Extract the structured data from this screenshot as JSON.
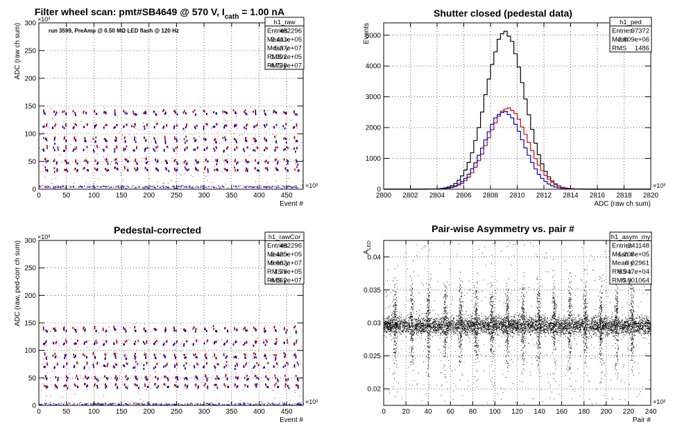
{
  "chart_data": [
    {
      "type": "scatter",
      "title": "Filter wheel scan: pmt#SB4649 @   570 V, I",
      "title_sub": "cath",
      "title_tail": "   = 1.00 nA",
      "annotation": "run 3599, PreAmp @ 0.50 MΩ   LED flash @  120 Hz",
      "xlabel": "Event #",
      "ylabel": "ADC (raw ch sum)",
      "x_multiplier": "×10³",
      "y_multiplier": "×10³",
      "xlim": [
        0,
        480
      ],
      "ylim": [
        0,
        300
      ],
      "xticks": [
        0,
        50,
        100,
        150,
        200,
        250,
        300,
        350,
        400,
        450
      ],
      "yticks": [
        0,
        50,
        100,
        150,
        200,
        250,
        300
      ],
      "grid": true,
      "bands": [
        {
          "y": 140,
          "color": "#cc0000"
        },
        {
          "y": 136,
          "color": "#0000cc"
        },
        {
          "y": 116,
          "color": "#cc0000"
        },
        {
          "y": 112,
          "color": "#0000cc"
        },
        {
          "y": 92,
          "color": "#cc0000"
        },
        {
          "y": 87,
          "color": "#0000cc"
        },
        {
          "y": 75,
          "color": "#cc0000"
        },
        {
          "y": 70,
          "color": "#0000cc"
        },
        {
          "y": 52,
          "color": "#cc0000"
        },
        {
          "y": 48,
          "color": "#0000cc"
        },
        {
          "y": 37,
          "color": "#cc0000"
        },
        {
          "y": 34,
          "color": "#0000cc"
        },
        {
          "y": 4,
          "color": "#0000cc"
        }
      ],
      "stats": {
        "name": "h1_raw",
        "rows": [
          {
            "label": "Entries",
            "value": "482296"
          },
          {
            "label": "Mean x",
            "value": "2.411e+05"
          },
          {
            "label": "Mean y",
            "value": "5.37e+07"
          },
          {
            "label": "RMS x",
            "value": "1.392e+05"
          },
          {
            "label": "RMS y",
            "value": "4.738e+07"
          }
        ]
      }
    },
    {
      "type": "line",
      "title": "Shutter closed (pedestal data)",
      "xlabel": "ADC (raw ch sum)",
      "ylabel": "Events",
      "x_multiplier": "×10³",
      "xlim": [
        2800,
        2820
      ],
      "ylim": [
        0,
        5400
      ],
      "xticks": [
        2800,
        2802,
        2804,
        2806,
        2808,
        2810,
        2812,
        2814,
        2816,
        2818,
        2820
      ],
      "yticks": [
        0,
        1000,
        2000,
        3000,
        4000,
        5000
      ],
      "grid": true,
      "series": [
        {
          "color": "#000000",
          "mean": 2809.1,
          "sigma": 1.45,
          "peak": 5100
        },
        {
          "color": "#cc0000",
          "mean": 2809.3,
          "sigma": 1.5,
          "peak": 2620
        },
        {
          "color": "#0000cc",
          "mean": 2809.0,
          "sigma": 1.45,
          "peak": 2520
        }
      ],
      "stats": {
        "name": "h1_ped",
        "rows": [
          {
            "label": "Entries",
            "value": "97372"
          },
          {
            "label": "Mean",
            "value": "2.809e+06"
          },
          {
            "label": "RMS",
            "value": "1486"
          }
        ]
      }
    },
    {
      "type": "scatter",
      "title": "Pedestal-corrected",
      "xlabel": "Event #",
      "ylabel": "ADC (raw, ped-corr ch sum)",
      "x_multiplier": "×10³",
      "y_multiplier": "×10³",
      "xlim": [
        0,
        480
      ],
      "ylim": [
        0,
        300
      ],
      "xticks": [
        0,
        50,
        100,
        150,
        200,
        250,
        300,
        350,
        400,
        450
      ],
      "yticks": [
        0,
        50,
        100,
        150,
        200,
        250,
        300
      ],
      "grid": true,
      "bands": [
        {
          "y": 140,
          "color": "#cc0000"
        },
        {
          "y": 136,
          "color": "#0000cc"
        },
        {
          "y": 116,
          "color": "#cc0000"
        },
        {
          "y": 112,
          "color": "#0000cc"
        },
        {
          "y": 92,
          "color": "#cc0000"
        },
        {
          "y": 87,
          "color": "#0000cc"
        },
        {
          "y": 75,
          "color": "#cc0000"
        },
        {
          "y": 70,
          "color": "#0000cc"
        },
        {
          "y": 52,
          "color": "#cc0000"
        },
        {
          "y": 48,
          "color": "#0000cc"
        },
        {
          "y": 37,
          "color": "#cc0000"
        },
        {
          "y": 34,
          "color": "#0000cc"
        },
        {
          "y": 2,
          "color": "#0000cc"
        }
      ],
      "stats": {
        "name": "h1_rawCor",
        "rows": [
          {
            "label": "Entries",
            "value": "482296"
          },
          {
            "label": "Mean x",
            "value": "2.425e+05"
          },
          {
            "label": "Mean y",
            "value": "5.662e+07"
          },
          {
            "label": "RMS x",
            "value": "1.39e+05"
          },
          {
            "label": "RMS y",
            "value": "4.662e+07"
          }
        ]
      }
    },
    {
      "type": "scatter",
      "title": "Pair-wise Asymmetry vs. pair #",
      "xlabel": "Pair #",
      "ylabel": "A",
      "ylabel_sub": "LED",
      "x_multiplier": "×10³",
      "xlim": [
        0,
        240
      ],
      "ylim": [
        0.0175,
        0.0425
      ],
      "xticks": [
        0,
        20,
        40,
        60,
        80,
        100,
        120,
        140,
        160,
        180,
        200,
        220,
        240
      ],
      "yticks": [
        0.02,
        0.025,
        0.03,
        0.035,
        0.04
      ],
      "ytick_labels": [
        "0.02",
        "0.025",
        "0.03",
        "0.035",
        "0.04"
      ],
      "grid": true,
      "band_center": 0.0296,
      "band_halfwidth": 0.0012,
      "spike_x": [
        10,
        25,
        40,
        55,
        69,
        83,
        97,
        111,
        125,
        139,
        153,
        167,
        181,
        195,
        209,
        223
      ],
      "stats": {
        "name": "h1_asym_my",
        "rows": [
          {
            "label": "Entries",
            "value": "241148"
          },
          {
            "label": "Mean x",
            "value": "1.208e+05"
          },
          {
            "label": "Mean y",
            "value": "0.02961"
          },
          {
            "label": "RMS x",
            "value": "6.947e+04"
          },
          {
            "label": "RMS y",
            "value": "0.001064"
          }
        ]
      }
    }
  ]
}
